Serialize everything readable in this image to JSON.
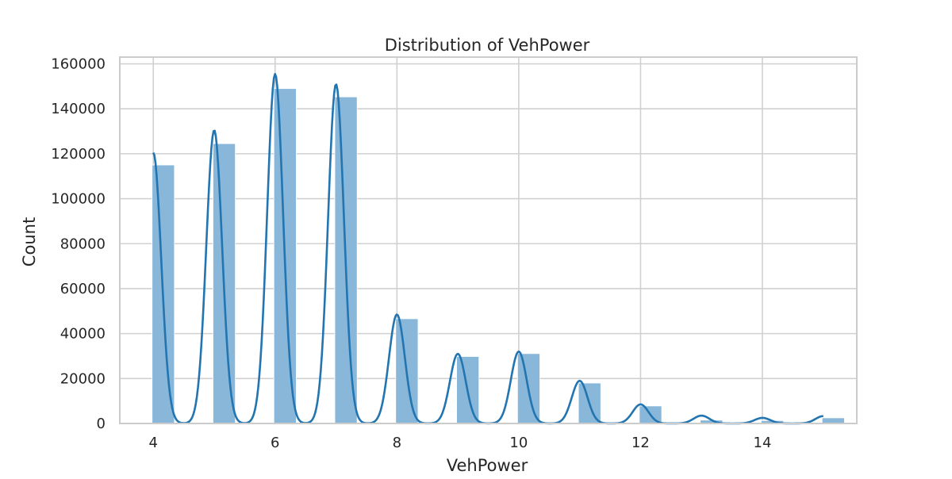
{
  "chart_data": {
    "type": "bar",
    "title": "Distribution of VehPower",
    "xlabel": "VehPower",
    "ylabel": "Count",
    "xlim": [
      3.45,
      15.55
    ],
    "ylim": [
      0,
      163000
    ],
    "xticks": [
      4,
      6,
      8,
      10,
      12,
      14
    ],
    "yticks": [
      0,
      20000,
      40000,
      60000,
      80000,
      100000,
      120000,
      140000,
      160000
    ],
    "grid": true,
    "legend": "none",
    "bar_width": 0.3667,
    "bars": [
      {
        "x": 4,
        "value": 115000
      },
      {
        "x": 5,
        "value": 124500
      },
      {
        "x": 6,
        "value": 149000
      },
      {
        "x": 7,
        "value": 145300
      },
      {
        "x": 8,
        "value": 46600
      },
      {
        "x": 9,
        "value": 29800
      },
      {
        "x": 10,
        "value": 31100
      },
      {
        "x": 11,
        "value": 18000
      },
      {
        "x": 12,
        "value": 7800
      },
      {
        "x": 13,
        "value": 1500
      },
      {
        "x": 14,
        "value": 1300
      },
      {
        "x": 15,
        "value": 2500
      }
    ],
    "kde_peaks": [
      {
        "x": 4,
        "value": 120500
      },
      {
        "x": 5,
        "value": 130500
      },
      {
        "x": 6,
        "value": 155500
      },
      {
        "x": 7,
        "value": 151000
      },
      {
        "x": 8,
        "value": 48500
      },
      {
        "x": 9,
        "value": 31000
      },
      {
        "x": 10,
        "value": 32000
      },
      {
        "x": 11,
        "value": 19000
      },
      {
        "x": 12,
        "value": 8500
      },
      {
        "x": 13,
        "value": 3500
      },
      {
        "x": 14,
        "value": 2500
      },
      {
        "x": 15,
        "value": 3300
      }
    ],
    "colors": {
      "bar": "#89b7da",
      "kde": "#2275b0",
      "grid": "#d0d0d0",
      "frame": "#cccccc"
    }
  }
}
